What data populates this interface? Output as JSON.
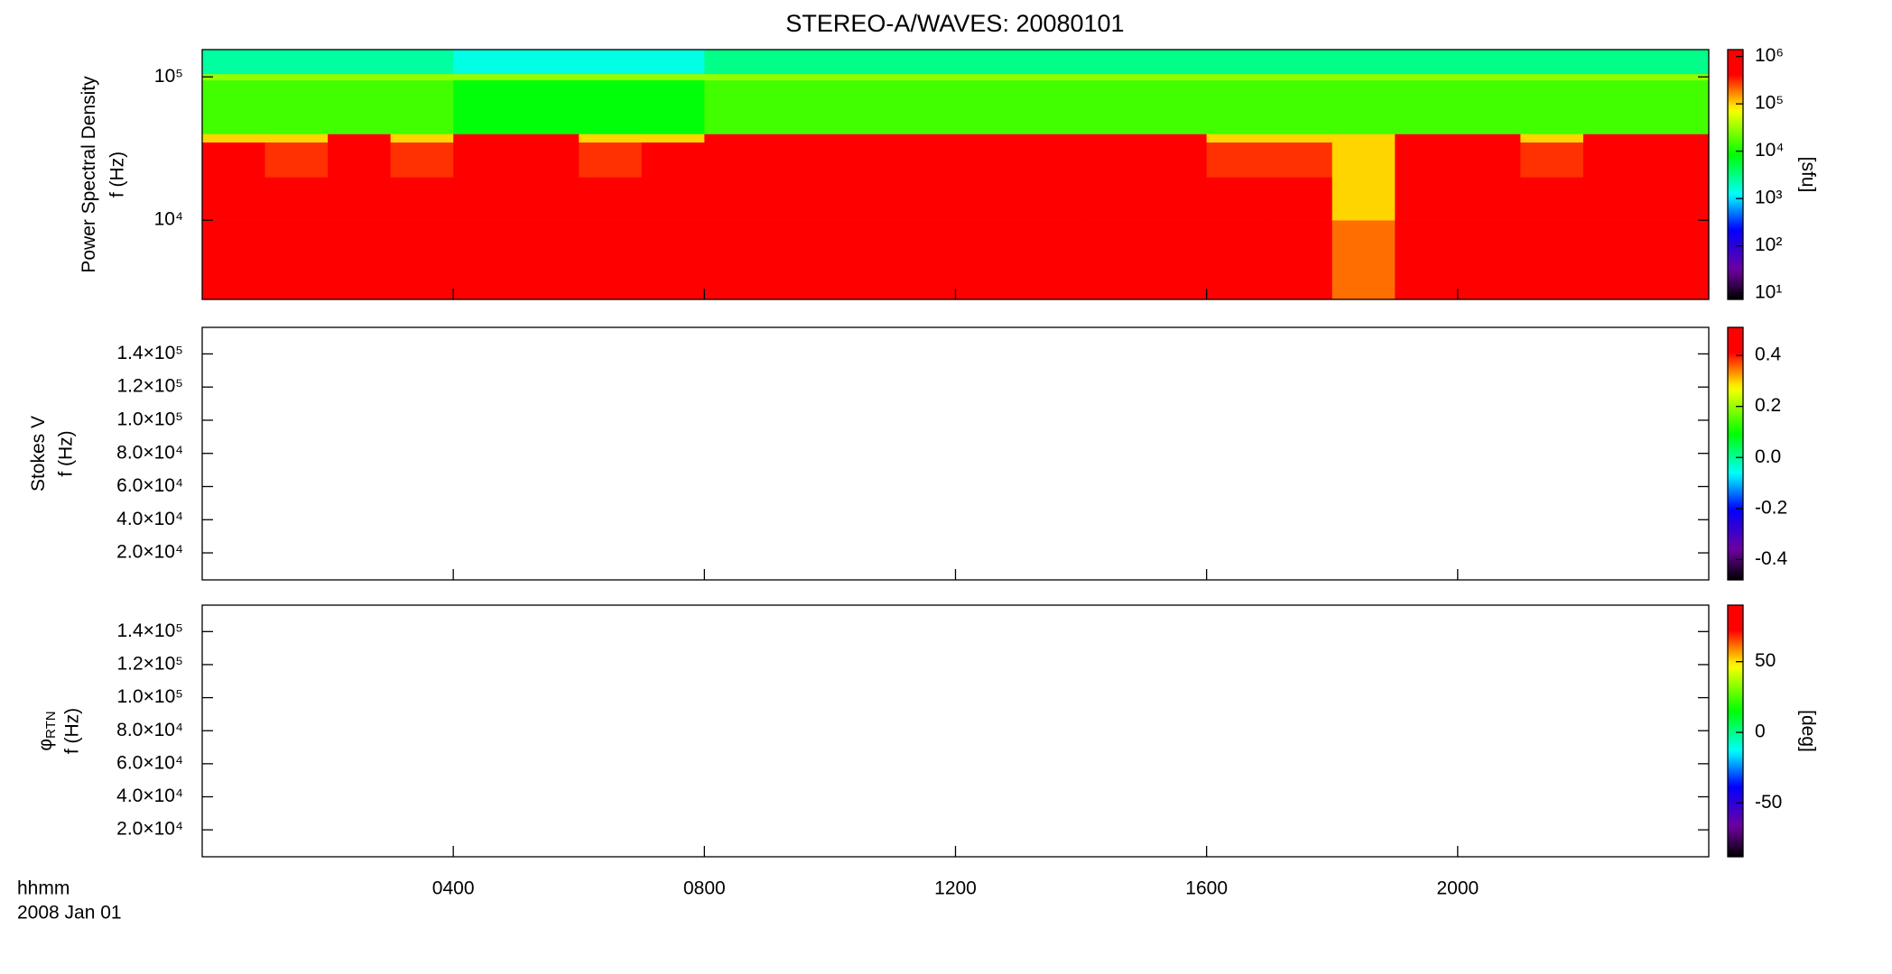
{
  "chart_data": [
    {
      "type": "heatmap",
      "title": "STEREO-A/WAVES: 20080101",
      "ylabel": "Power Spectral Density",
      "ylabel2": "f (Hz)",
      "xlim": [
        0,
        24
      ],
      "ylim": [
        2800,
        155000
      ],
      "ylog": true,
      "yticks": [
        {
          "value": 10000,
          "label": "10⁴"
        },
        {
          "value": 100000,
          "label": "10⁵"
        }
      ],
      "x_edges": [
        0,
        1,
        2,
        3,
        4,
        5,
        6,
        7,
        8,
        9,
        10,
        11,
        12,
        13,
        14,
        15,
        16,
        17,
        18,
        19,
        20,
        21,
        22,
        23,
        24
      ],
      "y_edges": [
        2800,
        10000,
        20000,
        35000,
        40000,
        95000,
        105000,
        155000
      ],
      "values": [
        [
          2000000.0,
          2000000.0,
          2000000.0,
          2000000.0,
          2000000.0,
          2000000.0,
          2000000.0,
          2000000.0,
          2000000.0,
          2000000.0,
          2000000.0,
          2000000.0,
          2000000.0,
          2000000.0,
          2000000.0,
          2000000.0,
          2000000.0,
          2000000.0,
          200000.0,
          2000000.0,
          2000000.0,
          2000000.0,
          2000000.0,
          2000000.0
        ],
        [
          2000000.0,
          2000000.0,
          2000000.0,
          2000000.0,
          2000000.0,
          2000000.0,
          500000.0,
          2000000.0,
          2000000.0,
          2000000.0,
          2000000.0,
          2000000.0,
          2000000.0,
          2000000.0,
          2000000.0,
          2000000.0,
          2000000.0,
          2000000.0,
          100000.0,
          2000000.0,
          2000000.0,
          2000000.0,
          2000000.0,
          2000000.0
        ],
        [
          2000000.0,
          300000.0,
          2000000.0,
          300000.0,
          2000000.0,
          2000000.0,
          300000.0,
          2000000.0,
          2000000.0,
          2000000.0,
          2000000.0,
          2000000.0,
          2000000.0,
          2000000.0,
          2000000.0,
          2000000.0,
          300000.0,
          300000.0,
          100000.0,
          2000000.0,
          2000000.0,
          300000.0,
          2000000.0,
          2000000.0
        ],
        [
          100000.0,
          100000.0,
          500000.0,
          100000.0,
          500000.0,
          500000.0,
          100000.0,
          100000.0,
          500000.0,
          500000.0,
          500000.0,
          500000.0,
          500000.0,
          500000.0,
          500000.0,
          500000.0,
          100000.0,
          100000.0,
          100000.0,
          500000.0,
          500000.0,
          100000.0,
          500000.0,
          500000.0
        ],
        [
          15000.0,
          15000.0,
          15000.0,
          15000.0,
          8000.0,
          8000.0,
          8000.0,
          8000.0,
          15000.0,
          15000.0,
          15000.0,
          15000.0,
          15000.0,
          15000.0,
          15000.0,
          15000.0,
          15000.0,
          15000.0,
          15000.0,
          15000.0,
          15000.0,
          15000.0,
          15000.0,
          15000.0
        ],
        [
          30000.0,
          30000.0,
          30000.0,
          30000.0,
          30000.0,
          30000.0,
          30000.0,
          30000.0,
          30000.0,
          30000.0,
          30000.0,
          30000.0,
          30000.0,
          30000.0,
          30000.0,
          30000.0,
          30000.0,
          30000.0,
          30000.0,
          30000.0,
          30000.0,
          30000.0,
          30000.0,
          30000.0
        ],
        [
          2500.0,
          2500.0,
          2500.0,
          2500.0,
          1500.0,
          1500.0,
          1500.0,
          1500.0,
          3000.0,
          3000.0,
          3000.0,
          3000.0,
          3000.0,
          3000.0,
          3000.0,
          3000.0,
          3000.0,
          3000.0,
          3000.0,
          3000.0,
          3000.0,
          3000.0,
          3000.0,
          3000.0
        ]
      ],
      "colorbar": {
        "lim": [
          7.4,
          1400000
        ],
        "log": true,
        "colormap": "rainbow",
        "label": "[sfu]",
        "ticks": [
          {
            "value": 10,
            "label": "10¹"
          },
          {
            "value": 100,
            "label": "10²"
          },
          {
            "value": 1000,
            "label": "10³"
          },
          {
            "value": 10000,
            "label": "10⁴"
          },
          {
            "value": 100000,
            "label": "10⁵"
          },
          {
            "value": 1000000,
            "label": "10⁶"
          }
        ]
      }
    },
    {
      "type": "heatmap",
      "ylabel": "Stokes V",
      "ylabel2": "f (Hz)",
      "xlim": [
        0,
        24
      ],
      "ylim": [
        3700,
        156000
      ],
      "ylog": false,
      "yticks": [
        {
          "value": 20000,
          "label": "2.0×10⁴"
        },
        {
          "value": 40000,
          "label": "4.0×10⁴"
        },
        {
          "value": 60000,
          "label": "6.0×10⁴"
        },
        {
          "value": 80000,
          "label": "8.0×10⁴"
        },
        {
          "value": 100000,
          "label": "1.0×10⁵"
        },
        {
          "value": 120000,
          "label": "1.2×10⁵"
        },
        {
          "value": 140000,
          "label": "1.4×10⁵"
        }
      ],
      "colorbar": {
        "lim": [
          -0.48,
          0.51
        ],
        "log": false,
        "colormap": "rainbow",
        "ticks": [
          -0.4,
          -0.2,
          {
            "value": 0,
            "label": "0.0"
          },
          0.2,
          0.4
        ]
      }
    },
    {
      "type": "heatmap",
      "ylabel": "φ",
      "ylabel_sub": "RTN",
      "ylabel2": "f (Hz)",
      "xlim": [
        0,
        24
      ],
      "ylim": [
        3700,
        156000
      ],
      "ylog": false,
      "yticks": [
        {
          "value": 20000,
          "label": "2.0×10⁴"
        },
        {
          "value": 40000,
          "label": "4.0×10⁴"
        },
        {
          "value": 60000,
          "label": "6.0×10⁴"
        },
        {
          "value": 80000,
          "label": "8.0×10⁴"
        },
        {
          "value": 100000,
          "label": "1.0×10⁵"
        },
        {
          "value": 120000,
          "label": "1.2×10⁵"
        },
        {
          "value": 140000,
          "label": "1.4×10⁵"
        }
      ],
      "xticks": [
        {
          "value": 4,
          "label": "0400"
        },
        {
          "value": 8,
          "label": "0800"
        },
        {
          "value": 12,
          "label": "1200"
        },
        {
          "value": 16,
          "label": "1600"
        },
        {
          "value": 20,
          "label": "2000"
        }
      ],
      "xlabel": "hhmm",
      "date_label": "2008 Jan 01",
      "colorbar": {
        "lim": [
          -88,
          90
        ],
        "log": false,
        "colormap": "rainbow",
        "label": "[deg]",
        "ticks": [
          -50,
          0,
          50
        ]
      }
    }
  ]
}
